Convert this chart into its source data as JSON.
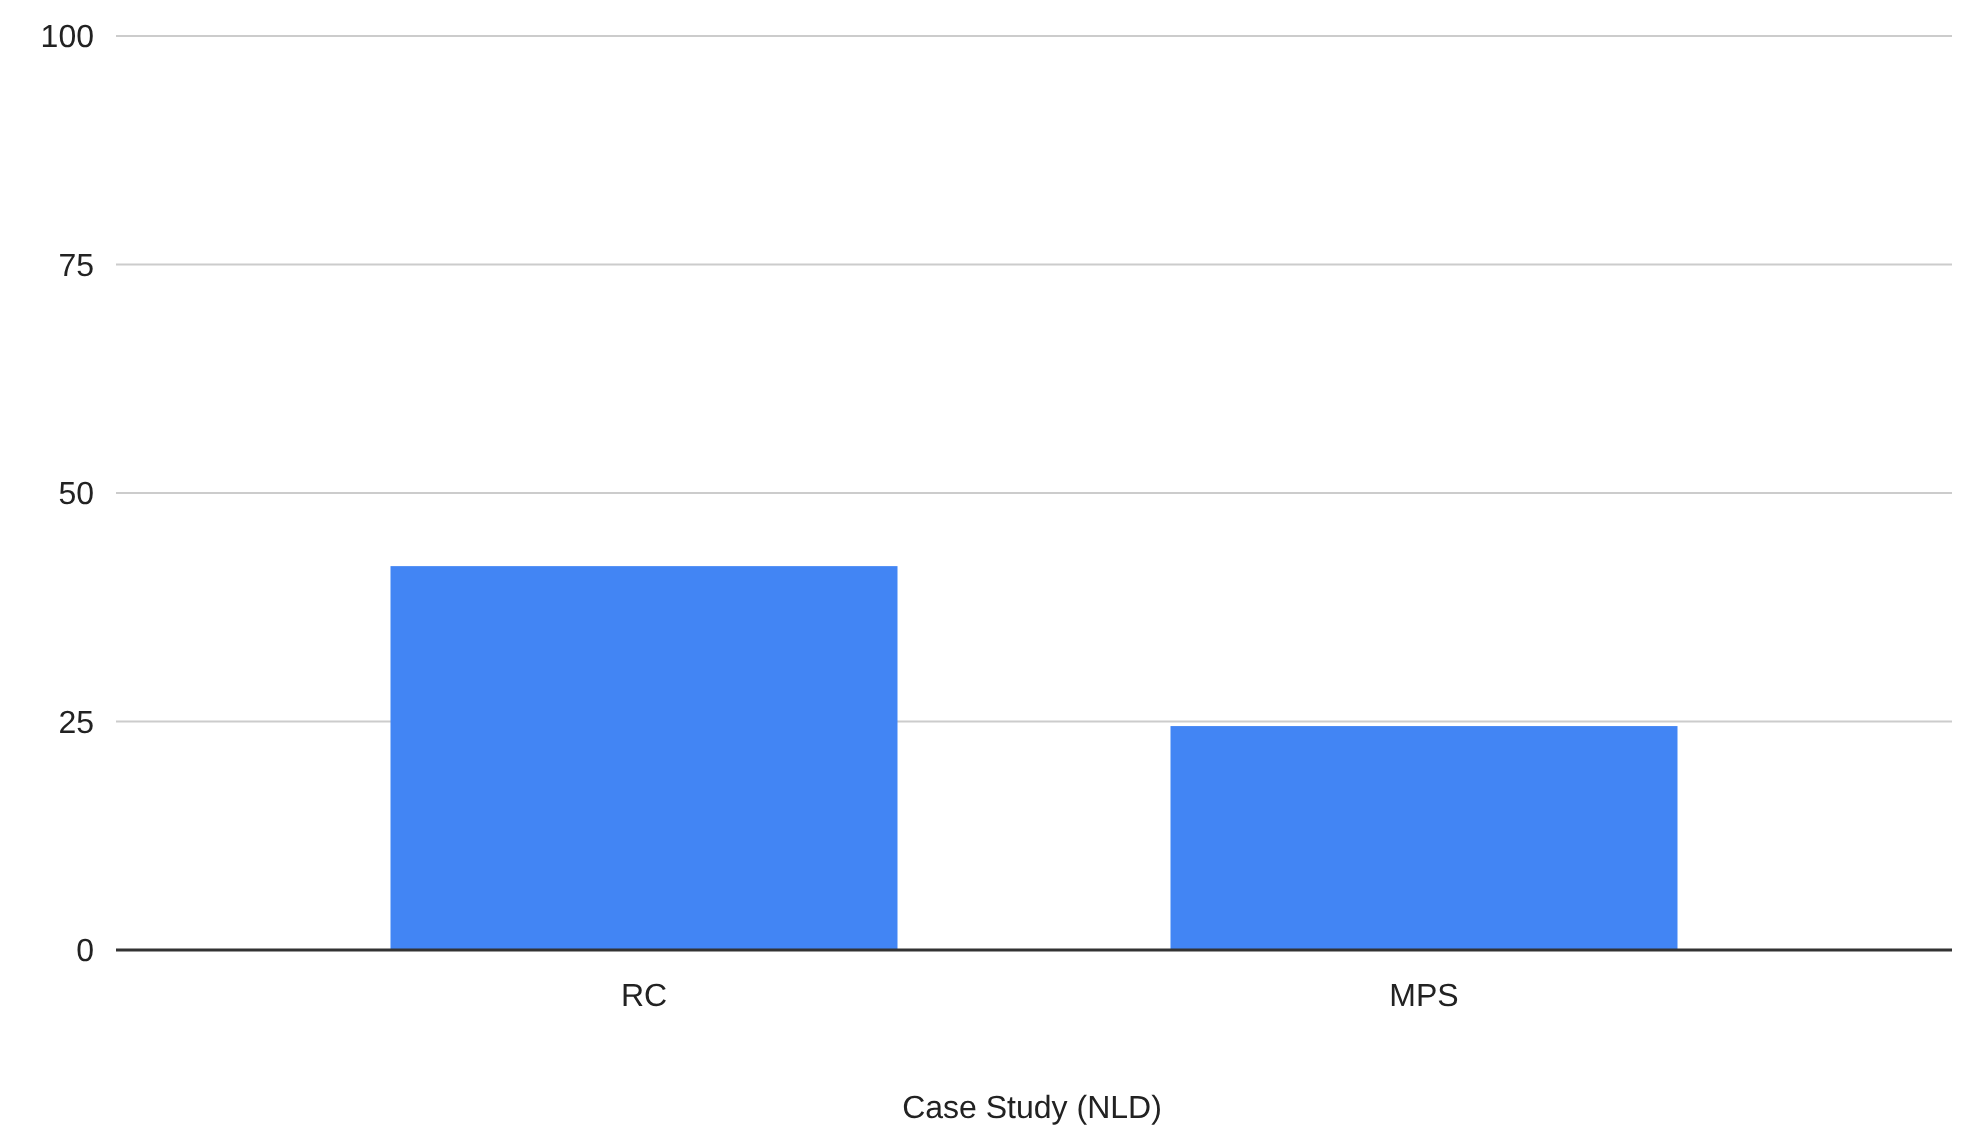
{
  "chart_data": {
    "type": "bar",
    "xlabel": "Case Study (NLD)",
    "categories": [
      "RC",
      "MPS"
    ],
    "values": [
      42,
      24.5
    ],
    "color": "#4285f4",
    "ylim": [
      0,
      100
    ],
    "yticks": [
      0,
      25,
      50,
      75,
      100
    ],
    "grid": "y"
  }
}
